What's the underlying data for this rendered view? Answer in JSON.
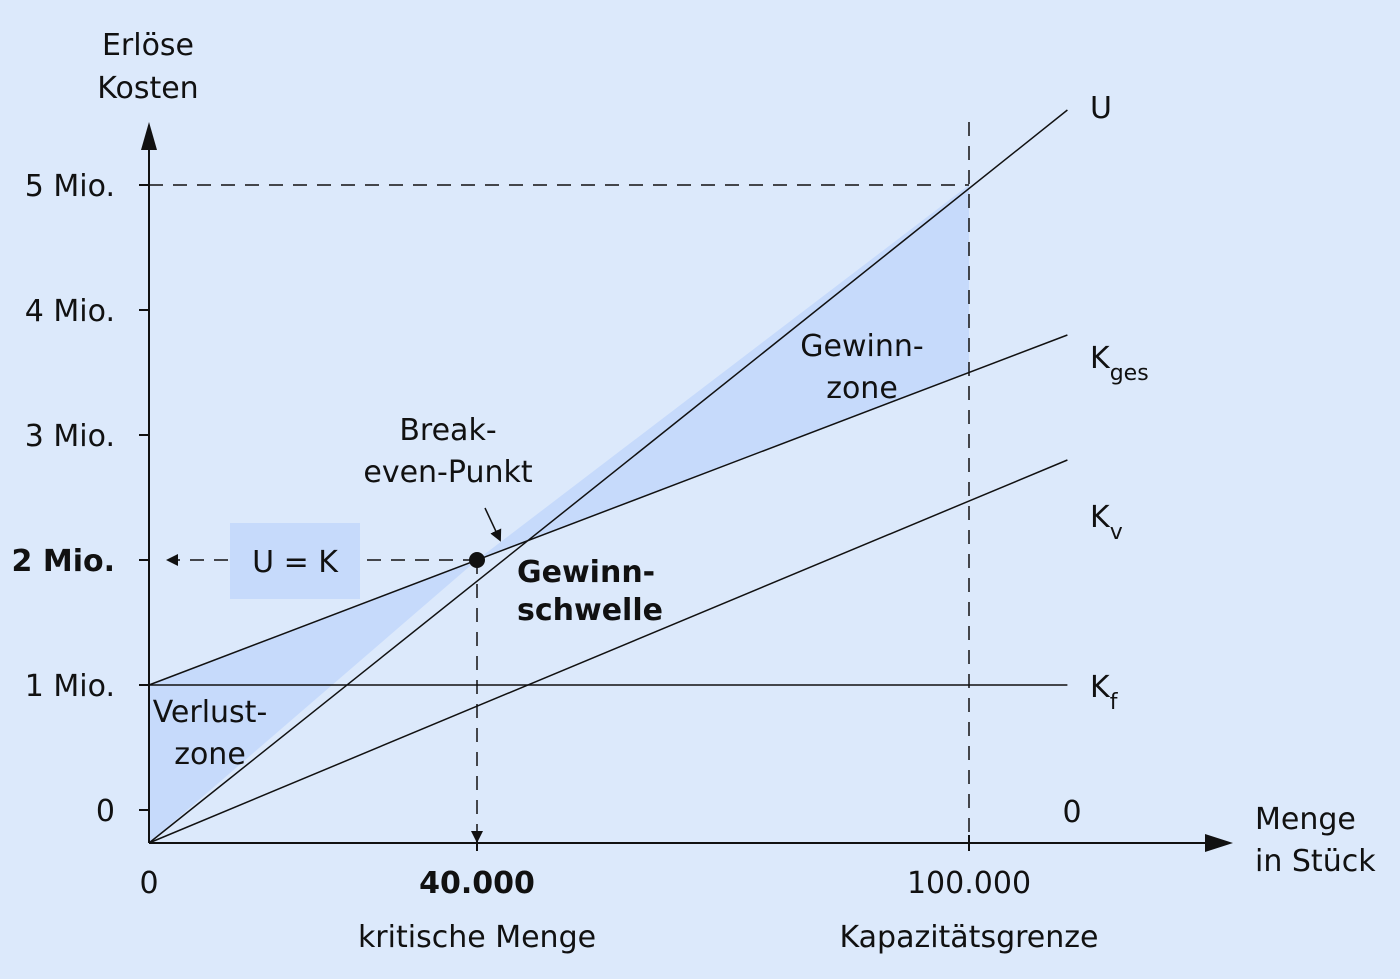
{
  "chart_data": {
    "type": "line",
    "title": "",
    "ylabel_lines": [
      "Erlöse",
      "Kosten"
    ],
    "xlabel_lines": [
      "Menge",
      "in Stück"
    ],
    "x_origin_label": "0",
    "x_origin_label_right": "0",
    "y_ticks": [
      {
        "value": 0,
        "label": "0"
      },
      {
        "value": 1000000,
        "label": "1 Mio."
      },
      {
        "value": 2000000,
        "label": "2 Mio.",
        "bold": true
      },
      {
        "value": 3000000,
        "label": "3 Mio."
      },
      {
        "value": 4000000,
        "label": "4 Mio."
      },
      {
        "value": 5000000,
        "label": "5 Mio."
      }
    ],
    "x_ticks": [
      {
        "value": 40000,
        "label": "40.000",
        "bold": true,
        "sublabel": "kritische Menge"
      },
      {
        "value": 100000,
        "label": "100.000",
        "sublabel": "Kapazitätsgrenze"
      }
    ],
    "xlim": [
      0,
      112000
    ],
    "ylim": [
      0,
      5000000
    ],
    "series": [
      {
        "name": "U",
        "subscript": "",
        "x": [
          0,
          112000
        ],
        "y": [
          0,
          5600000
        ]
      },
      {
        "name": "K",
        "subscript": "ges",
        "x": [
          0,
          112000
        ],
        "y": [
          1000000,
          3800000
        ]
      },
      {
        "name": "K",
        "subscript": "v",
        "x": [
          0,
          112000
        ],
        "y": [
          0,
          2800000
        ]
      },
      {
        "name": "K",
        "subscript": "f",
        "x": [
          0,
          112000
        ],
        "y": [
          1000000,
          1000000
        ]
      }
    ],
    "break_even": {
      "x": 40000,
      "y": 2000000,
      "label_lines": [
        "Break-",
        "even-Punkt"
      ],
      "name_lines": [
        "Gewinn-",
        "schwelle"
      ],
      "box_label": "U = K"
    },
    "zones": [
      {
        "name_lines": [
          "Verlust-",
          "zone"
        ],
        "fill": "#c6dafb"
      },
      {
        "name_lines": [
          "Gewinn-",
          "zone"
        ],
        "fill": "#c6dafb"
      }
    ],
    "grid": false,
    "colors": {
      "background": "#dce9fb",
      "zone_fill": "#c6dafb",
      "box_fill": "#c6dafb",
      "line": "#111111"
    }
  }
}
